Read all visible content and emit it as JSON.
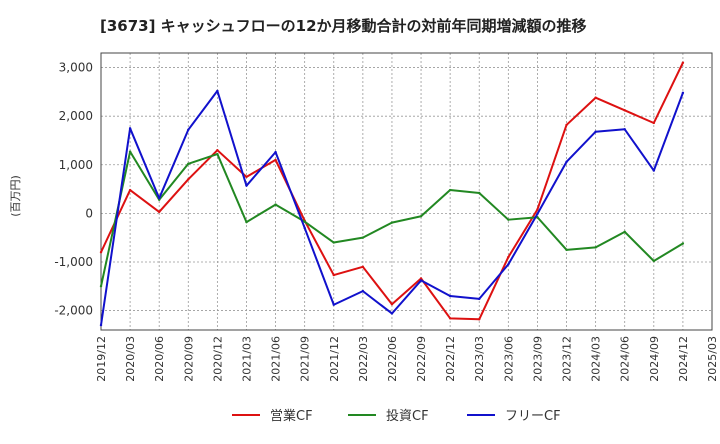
{
  "chart_data": {
    "type": "line",
    "title": "[3673]  キャッシュフローの12か月移動合計の対前年同期増減額の推移",
    "ylabel": "(百万円)",
    "xlabel": "",
    "ylim": [
      -2400,
      3300
    ],
    "yticks": [
      3000,
      2000,
      1000,
      0,
      -1000,
      -2000
    ],
    "ytick_labels": [
      "3,000",
      "2,000",
      "1,000",
      "0",
      "-1,000",
      "-2,000"
    ],
    "x": [
      "2019/12",
      "2020/03",
      "2020/06",
      "2020/09",
      "2020/12",
      "2021/03",
      "2021/06",
      "2021/09",
      "2021/12",
      "2022/03",
      "2022/06",
      "2022/09",
      "2022/12",
      "2023/03",
      "2023/06",
      "2023/09",
      "2023/12",
      "2024/03",
      "2024/06",
      "2024/09",
      "2024/12",
      "2025/03"
    ],
    "grid": true,
    "legend_position": "bottom",
    "series": [
      {
        "name": "営業CF",
        "color": "#dd1111",
        "values": [
          -800,
          480,
          30,
          700,
          1300,
          750,
          1100,
          -150,
          -1270,
          -1100,
          -1870,
          -1340,
          -2160,
          -2180,
          -900,
          80,
          1820,
          2380,
          2120,
          1860,
          3100,
          null
        ]
      },
      {
        "name": "投資CF",
        "color": "#228822",
        "values": [
          -1500,
          1270,
          280,
          1020,
          1220,
          -180,
          180,
          -170,
          -600,
          -500,
          -190,
          -60,
          480,
          420,
          -130,
          -80,
          -750,
          -700,
          -380,
          -980,
          -620,
          null
        ]
      },
      {
        "name": "フリーCF",
        "color": "#1111cc",
        "values": [
          -2300,
          1750,
          310,
          1720,
          2520,
          570,
          1260,
          -300,
          -1880,
          -1600,
          -2060,
          -1380,
          -1700,
          -1760,
          -1050,
          -10,
          1060,
          1680,
          1730,
          880,
          2480,
          null
        ]
      }
    ]
  }
}
